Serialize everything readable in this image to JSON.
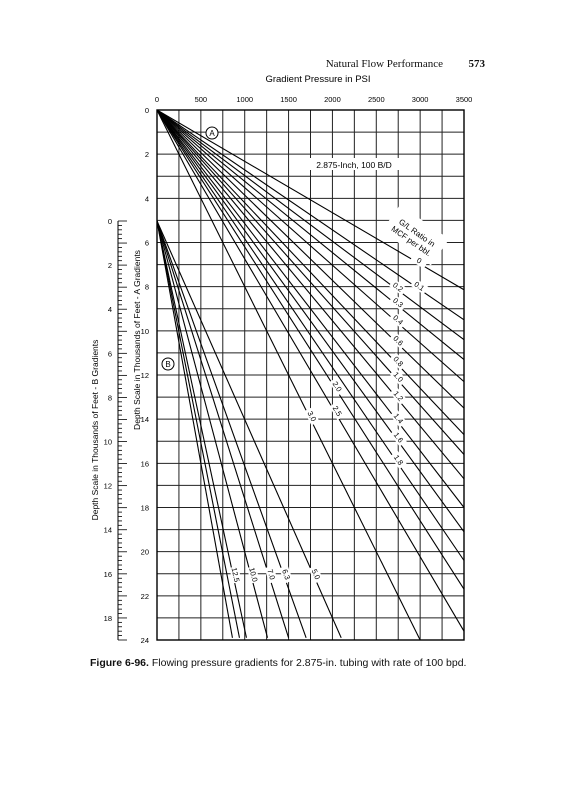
{
  "header": {
    "running_title": "Natural Flow Performance",
    "page_number": "573"
  },
  "caption": {
    "label": "Figure 6-96.",
    "text": "Flowing pressure gradients for 2.875-in. tubing with rate of 100 bpd."
  },
  "chart_data": {
    "type": "line",
    "title": "Gradient Pressure in PSI",
    "annotation": "2.875-Inch, 100 B/D",
    "glr_heading": "G/L Ratio in MCF per bbl.",
    "x_axis": {
      "label": "Gradient Pressure in PSI",
      "range": [
        0,
        3500
      ],
      "ticks": [
        "0",
        "500",
        "1000",
        "1500",
        "2000",
        "2500",
        "3000",
        "3500"
      ]
    },
    "y_axis_A": {
      "label": "Depth Scale in Thousands of Feet - A Gradients",
      "range": [
        0,
        24
      ],
      "ticks": [
        "0",
        "2",
        "4",
        "6",
        "8",
        "10",
        "12",
        "14",
        "16",
        "18",
        "20",
        "22",
        "24"
      ]
    },
    "y_axis_B": {
      "label": "Depth Scale in Thousands of Feet - B Gradients",
      "range": [
        0,
        19
      ],
      "ticks": [
        "0",
        "2",
        "4",
        "6",
        "8",
        "10",
        "12",
        "14",
        "16",
        "18"
      ]
    },
    "markers": [
      "A",
      "B"
    ],
    "grid": true,
    "series": [
      {
        "name": "0",
        "group": "A",
        "x": [
          0,
          3500
        ],
        "y": [
          0,
          8.14
        ]
      },
      {
        "name": "0.1",
        "group": "A",
        "x": [
          0,
          3500
        ],
        "y": [
          0,
          9.5
        ]
      },
      {
        "name": "0.2",
        "group": "A",
        "x": [
          0,
          3500
        ],
        "y": [
          0,
          10.4
        ]
      },
      {
        "name": "0.3",
        "group": "A",
        "x": [
          0,
          3500
        ],
        "y": [
          0,
          11.3
        ]
      },
      {
        "name": "0.4",
        "group": "A",
        "x": [
          0,
          3500
        ],
        "y": [
          0,
          12.3
        ]
      },
      {
        "name": "0.6",
        "group": "A",
        "x": [
          0,
          3500
        ],
        "y": [
          0,
          13.5
        ]
      },
      {
        "name": "0.8",
        "group": "A",
        "x": [
          0,
          3500
        ],
        "y": [
          0,
          14.7
        ]
      },
      {
        "name": "1.0",
        "group": "A",
        "x": [
          0,
          3500
        ],
        "y": [
          0,
          15.6
        ]
      },
      {
        "name": "1.2",
        "group": "A",
        "x": [
          0,
          3500
        ],
        "y": [
          0,
          16.7
        ]
      },
      {
        "name": "1.4",
        "group": "A",
        "x": [
          0,
          3500
        ],
        "y": [
          0,
          18.0
        ]
      },
      {
        "name": "1.6",
        "group": "A",
        "x": [
          0,
          3500
        ],
        "y": [
          0,
          19.1
        ]
      },
      {
        "name": "1.8",
        "group": "A",
        "x": [
          0,
          3500
        ],
        "y": [
          0,
          20.4
        ]
      },
      {
        "name": "2.0",
        "group": "A",
        "x": [
          0,
          3500
        ],
        "y": [
          0,
          21.7
        ]
      },
      {
        "name": "2.5",
        "group": "A",
        "x": [
          0,
          3500
        ],
        "y": [
          0,
          23.6
        ]
      },
      {
        "name": "3.0",
        "group": "A",
        "x": [
          0,
          3000
        ],
        "y": [
          0,
          24
        ]
      },
      {
        "name": "5.0",
        "group": "B",
        "x": [
          0,
          2100
        ],
        "y": [
          0,
          18.9
        ]
      },
      {
        "name": "6.3",
        "group": "B",
        "x": [
          0,
          1700
        ],
        "y": [
          0,
          18.9
        ]
      },
      {
        "name": "7.0",
        "group": "B",
        "x": [
          0,
          1500
        ],
        "y": [
          0,
          18.9
        ]
      },
      {
        "name": "10.0",
        "group": "B",
        "x": [
          0,
          1260
        ],
        "y": [
          0,
          18.9
        ]
      },
      {
        "name": "12.5",
        "group": "B",
        "x": [
          0,
          1020
        ],
        "y": [
          0,
          18.9
        ]
      },
      {
        "name": "",
        "group": "B",
        "x": [
          0,
          940
        ],
        "y": [
          0,
          18.9
        ]
      },
      {
        "name": "",
        "group": "B",
        "x": [
          0,
          860
        ],
        "y": [
          0,
          18.9
        ]
      }
    ]
  }
}
